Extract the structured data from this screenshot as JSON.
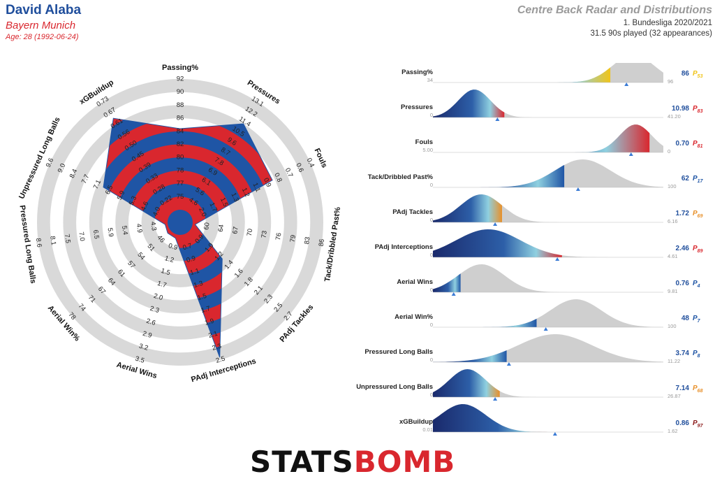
{
  "header": {
    "player": "David Alaba",
    "team": "Bayern Munich",
    "age": "Age: 28 (1992-06-24)",
    "title": "Centre Back Radar and Distributions",
    "competition": "1. Bundesliga 2020/2021",
    "minutes": "31.5 90s played (32 appearances)"
  },
  "logo": {
    "part1": "STATS",
    "part2": "BOMB"
  },
  "colors": {
    "blue": "#1f55a5",
    "red": "#d9272e",
    "ring": "#d9d9d9",
    "dist_gray": "#cfcfcf",
    "marker": "#3a7bd5"
  },
  "chart_data": [
    {
      "type": "radar",
      "title": "",
      "axes": [
        {
          "label": "Passing%",
          "ticks": [
            "75",
            "77",
            "78",
            "80",
            "82",
            "84",
            "86",
            "88",
            "90",
            "92"
          ],
          "fraction": 0.62
        },
        {
          "label": "Pressures",
          "ticks": [
            "4.6",
            "5.6",
            "6.1",
            "6.9",
            "7.8",
            "8.7",
            "9.6",
            "10.5",
            "11.4",
            "12.2",
            "13.1"
          ],
          "fraction": 0.8
        },
        {
          "label": "Fouls",
          "ticks": [
            "2.0",
            "1.7",
            "1.5",
            "1.3",
            "1.2",
            "1.1",
            "0.9",
            "0.8",
            "0.7",
            "0.6",
            "0.4"
          ],
          "fraction": 0.68
        },
        {
          "label": "Tack/Dribbled Past%",
          "ticks": [
            "60",
            "64",
            "67",
            "70",
            "73",
            "76",
            "79",
            "83",
            "86"
          ],
          "fraction": 0.02
        },
        {
          "label": "PAdj Tackles",
          "ticks": [
            "0.9",
            "1.0",
            "1.2",
            "1.4",
            "1.6",
            "1.8",
            "2.1",
            "2.3",
            "2.5",
            "2.7"
          ],
          "fraction": 0.33
        },
        {
          "label": "PAdj Interceptions",
          "ticks": [
            "0.7",
            "0.9",
            "1.1",
            "1.3",
            "1.5",
            "1.7",
            "1.9",
            "2.1",
            "2.3",
            "2.5"
          ],
          "fraction": 0.98
        },
        {
          "label": "Aerial Wins",
          "ticks": [
            "0.9",
            "1.2",
            "1.5",
            "1.7",
            "2.0",
            "2.3",
            "2.6",
            "2.9",
            "3.2",
            "3.5"
          ],
          "fraction": 0.03
        },
        {
          "label": "Aerial Win%",
          "ticks": [
            "46",
            "51",
            "54",
            "57",
            "61",
            "64",
            "67",
            "71",
            "74",
            "78"
          ],
          "fraction": 0.03
        },
        {
          "label": "Pressured Long Balls",
          "ticks": [
            "4.3",
            "4.9",
            "5.4",
            "5.9",
            "6.5",
            "7.0",
            "7.5",
            "8.1",
            "8.6"
          ],
          "fraction": 0.02
        },
        {
          "label": "Unpressured Long Balls",
          "ticks": [
            "4.0",
            "4.6",
            "5.3",
            "5.9",
            "6.5",
            "7.1",
            "7.7",
            "8.4",
            "9.0",
            "9.6"
          ],
          "fraction": 0.55
        },
        {
          "label": "xGBuildup",
          "ticks": [
            "0.22",
            "0.28",
            "0.33",
            "0.39",
            "0.45",
            "0.50",
            "0.56",
            "0.61",
            "0.67",
            "0.73"
          ],
          "fraction": 0.85
        }
      ]
    },
    {
      "type": "area",
      "title": "",
      "metrics": [
        {
          "label": "Passing%",
          "min": "34",
          "max": "96",
          "value": "86",
          "pct": "P53",
          "fill": 0.77,
          "mpos": 0.84,
          "color": "#f0c419",
          "peak": 0.87,
          "width": 0.09
        },
        {
          "label": "Pressures",
          "min": "0",
          "max": "41.20",
          "value": "10.98",
          "pct": "P83",
          "fill": 0.31,
          "mpos": 0.28,
          "color": "#d9272e",
          "peak": 0.18,
          "width": 0.07
        },
        {
          "label": "Fouls",
          "min": "5.00",
          "max": "0",
          "value": "0.70",
          "pct": "P81",
          "fill": 0.94,
          "mpos": 0.86,
          "color": "#d9272e",
          "peak": 0.88,
          "width": 0.07
        },
        {
          "label": "Tack/Dribbled Past%",
          "min": "0",
          "max": "100",
          "value": "62",
          "pct": "P17",
          "fill": 0.57,
          "mpos": 0.63,
          "color": "#1f55a5",
          "peak": 0.65,
          "width": 0.12
        },
        {
          "label": "PAdj Tackles",
          "min": "0",
          "max": "6.16",
          "value": "1.72",
          "pct": "P69",
          "fill": 0.3,
          "mpos": 0.27,
          "color": "#e8902a",
          "peak": 0.21,
          "width": 0.09
        },
        {
          "label": "PAdj Interceptions",
          "min": "0",
          "max": "4.61",
          "value": "2.46",
          "pct": "P89",
          "fill": 0.56,
          "mpos": 0.54,
          "color": "#d9272e",
          "peak": 0.24,
          "width": 0.14
        },
        {
          "label": "Aerial Wins",
          "min": "0",
          "max": "9.81",
          "value": "0.76",
          "pct": "P4",
          "fill": 0.12,
          "mpos": 0.09,
          "color": "#1f55a5",
          "peak": 0.21,
          "width": 0.1
        },
        {
          "label": "Aerial Win%",
          "min": "0",
          "max": "100",
          "value": "48",
          "pct": "P7",
          "fill": 0.45,
          "mpos": 0.49,
          "color": "#1f55a5",
          "peak": 0.62,
          "width": 0.11
        },
        {
          "label": "Pressured Long Balls",
          "min": "0",
          "max": "11.22",
          "value": "3.74",
          "pct": "P8",
          "fill": 0.32,
          "mpos": 0.33,
          "color": "#1f55a5",
          "peak": 0.53,
          "width": 0.16
        },
        {
          "label": "Unpressured Long Balls",
          "min": "0",
          "max": "26.87",
          "value": "7.14",
          "pct": "P68",
          "fill": 0.29,
          "mpos": 0.27,
          "color": "#e8902a",
          "peak": 0.15,
          "width": 0.08
        },
        {
          "label": "xGBuildup",
          "min": "0.01",
          "max": "1.62",
          "value": "0.86",
          "pct": "P97",
          "fill": 0.51,
          "mpos": 0.53,
          "color": "#8b1a1a",
          "peak": 0.13,
          "width": 0.1
        }
      ]
    }
  ]
}
